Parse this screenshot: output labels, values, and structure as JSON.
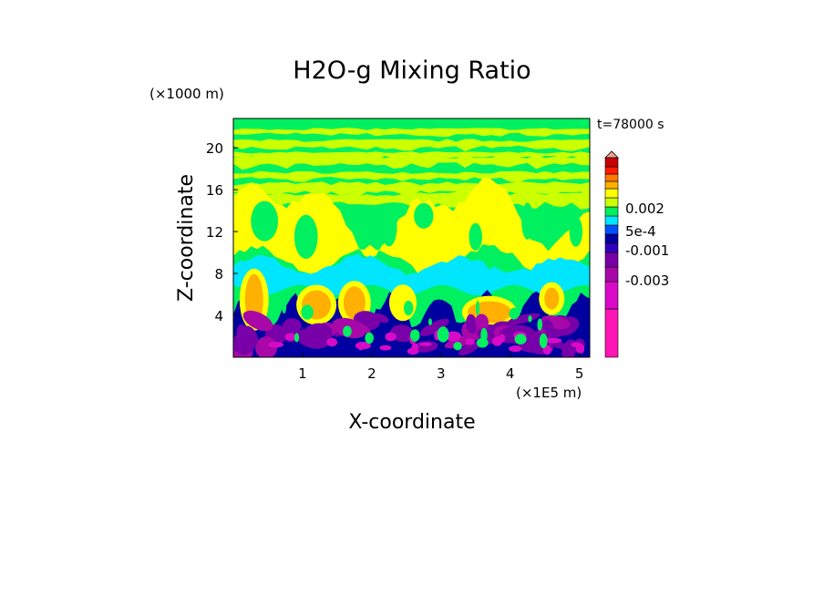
{
  "chart_data": {
    "type": "heatmap",
    "title": "H2O-g Mixing Ratio",
    "xlabel": "X-coordinate",
    "ylabel": "Z-coordinate",
    "x_unit": "(×1E5 m)",
    "y_unit": "(×1000 m)",
    "time_label": "t=78000 s",
    "xlim": [
      0,
      5.15
    ],
    "ylim": [
      0,
      22.8
    ],
    "x_ticks": [
      "1",
      "2",
      "3",
      "4",
      "5"
    ],
    "x_tick_values": [
      1,
      2,
      3,
      4,
      5
    ],
    "y_ticks": [
      "4",
      "8",
      "12",
      "16",
      "20"
    ],
    "y_tick_values": [
      4,
      8,
      12,
      16,
      20
    ],
    "colorbar": {
      "levels": [
        -0.006,
        -0.005,
        -0.004,
        -0.003,
        -0.0025,
        -0.002,
        -0.0015,
        -0.001,
        -0.0005,
        0.0,
        0.0005,
        0.001,
        0.0015,
        0.002,
        0.0025,
        0.003
      ],
      "colors": [
        "#ff14b4",
        "#d80ac8",
        "#a808a8",
        "#7800a8",
        "#3000c0",
        "#0000a0",
        "#0050ff",
        "#00e6ff",
        "#00f060",
        "#ccff00",
        "#ffff00",
        "#ffb000",
        "#ff7800",
        "#ff1a00",
        "#c80000",
        "#f0a090"
      ],
      "labels": [
        "0.002",
        "5e-4",
        "-0.001",
        "-0.003"
      ],
      "label_values": [
        0.002,
        0.0005,
        -0.001,
        -0.003
      ],
      "extend": "max"
    },
    "field_layers": [
      {
        "level": "green-base",
        "color": "#00f060",
        "z_range": [
          0,
          22.8
        ]
      },
      {
        "level": "yellow-stripes",
        "color": "#ccff00",
        "z": [
          16.0,
          17.2,
          18.6,
          20.2,
          21.4
        ]
      },
      {
        "level": "upper-yellow",
        "color": "#ffff00",
        "z_range": [
          9.5,
          16.5
        ]
      },
      {
        "level": "cyan-layer",
        "color": "#00e6ff",
        "z_range": [
          6.5,
          9.0
        ]
      },
      {
        "level": "orange-plumes",
        "color": "#ffb000",
        "x": [
          0.3,
          1.2,
          1.75,
          3.7,
          4.6
        ]
      },
      {
        "level": "lower-blue",
        "color": "#0000a0",
        "z_range": [
          0,
          5.5
        ]
      },
      {
        "level": "lower-purple",
        "color": "#7800a8",
        "z_range": [
          0,
          3.2
        ]
      }
    ],
    "grid": false,
    "legend": "right colorbar"
  }
}
